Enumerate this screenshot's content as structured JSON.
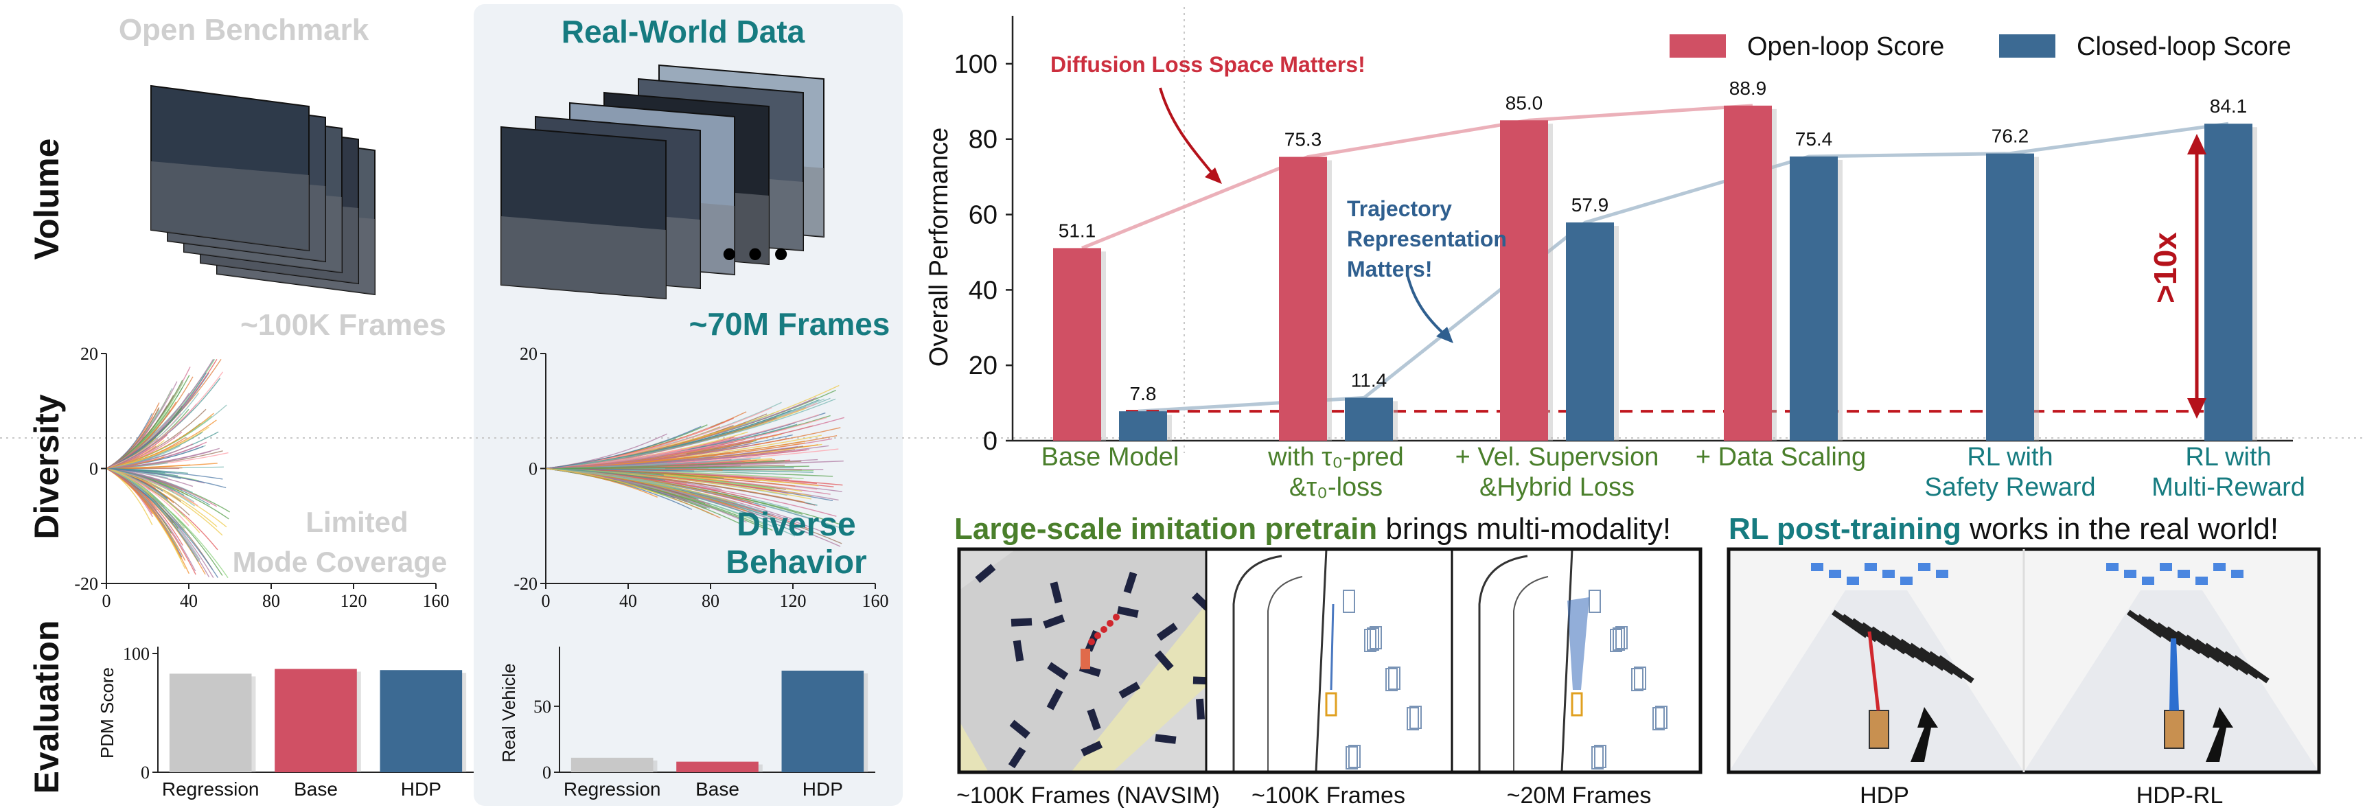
{
  "left": {
    "title": "Open Benchmark",
    "frames_label": "~100K Frames",
    "coverage_line1": "Limited",
    "coverage_line2": "Mode Coverage"
  },
  "middle": {
    "title": "Real-World Data",
    "frames_label": "~70M Frames",
    "behavior_line1": "Diverse",
    "behavior_line2": "Behavior"
  },
  "rows": {
    "volume": "Volume",
    "diversity": "Diversity",
    "evaluation": "Evaluation"
  },
  "annotations": {
    "diffusion": "Diffusion Loss Space Matters!",
    "trajectory": [
      "Trajectory",
      "Representation",
      "Matters!"
    ],
    "gain": ">10x"
  },
  "bottom": {
    "left_heading_bold": "Large-scale imitation pretrain",
    "left_heading_rest": " brings multi-modality!",
    "right_heading_bold": "RL post-training",
    "right_heading_rest": " works in the real world!",
    "captions_left": [
      "~100K Frames (NAVSIM)",
      "~100K Frames",
      "~20M Frames"
    ],
    "captions_right": [
      "HDP",
      "HDP-RL"
    ]
  },
  "colors": {
    "open_loop": "#d05064",
    "closed_loop": "#3c6a93",
    "accent_teal": "#167b80",
    "accent_green": "#4a7f2b",
    "gray": "#c8c8c8"
  },
  "chart_data": [
    {
      "type": "bar",
      "title": "",
      "ylabel": "Overall Performance",
      "ylim": [
        0,
        110
      ],
      "yticks": [
        0,
        20,
        40,
        60,
        80,
        100
      ],
      "categories": [
        [
          "Base Model"
        ],
        [
          "with τ₀-pred",
          "&τ₀-loss"
        ],
        [
          "+ Vel. Supervsion",
          "&Hybrid Loss"
        ],
        [
          "+ Data Scaling"
        ],
        [
          "RL with",
          "Safety Reward"
        ],
        [
          "RL with",
          "Multi-Reward"
        ]
      ],
      "series": [
        {
          "name": "Open-loop Score",
          "values": [
            51.1,
            75.3,
            85.0,
            88.9,
            null,
            null
          ]
        },
        {
          "name": "Closed-loop Score",
          "values": [
            7.8,
            11.4,
            57.9,
            75.4,
            76.2,
            84.1
          ]
        }
      ],
      "value_labels": {
        "open": [
          "51.1",
          "75.3",
          "85.0",
          "88.9",
          "",
          ""
        ],
        "closed": [
          "7.8",
          "11.4",
          "57.9",
          "75.4",
          "76.2",
          "84.1"
        ]
      },
      "legend_position": "top-right",
      "grid": false
    },
    {
      "type": "bar",
      "ylabel": "PDM Score",
      "ylim": [
        0,
        100
      ],
      "yticks": [
        0,
        100
      ],
      "categories": [
        "Regression",
        "Base",
        "HDP"
      ],
      "values": [
        83,
        87,
        86
      ],
      "colors": [
        "#c8c8c8",
        "#d05064",
        "#3c6a93"
      ]
    },
    {
      "type": "bar",
      "ylabel": "Real Vehicle",
      "ylim": [
        0,
        90
      ],
      "yticks": [
        0,
        50
      ],
      "categories": [
        "Regression",
        "Base",
        "HDP"
      ],
      "values": [
        11,
        8,
        77
      ],
      "colors": [
        "#c8c8c8",
        "#d05064",
        "#3c6a93"
      ]
    },
    {
      "type": "scatter",
      "xticks": [
        0,
        40,
        80,
        120,
        160
      ],
      "yticks": [
        -20,
        0,
        20
      ],
      "xlim": [
        0,
        160
      ],
      "ylim": [
        -20,
        20
      ],
      "note_x_extent": [
        0,
        60
      ]
    },
    {
      "type": "scatter",
      "xticks": [
        0,
        40,
        80,
        120,
        160
      ],
      "yticks": [
        -20,
        0,
        20
      ],
      "xlim": [
        0,
        160
      ],
      "ylim": [
        -20,
        20
      ],
      "note_x_extent": [
        0,
        145
      ]
    }
  ]
}
